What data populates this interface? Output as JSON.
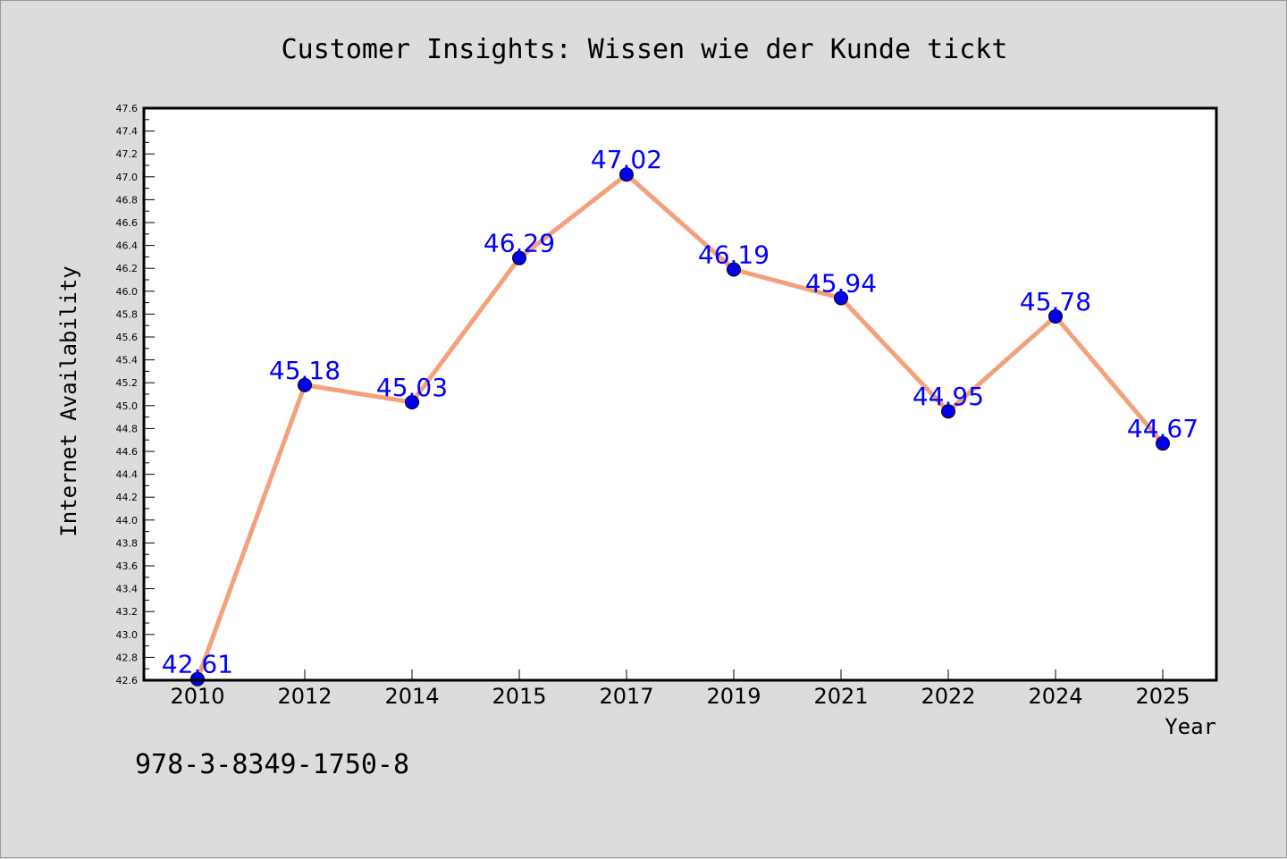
{
  "chart_data": {
    "type": "line",
    "title": "Customer Insights: Wissen wie der Kunde tickt",
    "xlabel": "Year",
    "ylabel": "Internet Availability",
    "categories": [
      "2010",
      "2012",
      "2014",
      "2015",
      "2017",
      "2019",
      "2021",
      "2022",
      "2024",
      "2025"
    ],
    "series": [
      {
        "values": [
          42.61,
          45.18,
          45.03,
          46.29,
          47.02,
          46.19,
          45.94,
          44.95,
          45.78,
          44.67
        ],
        "labels": [
          "42.61",
          "45.18",
          "45.03",
          "46.29",
          "47.02",
          "46.19",
          "45.94",
          "44.95",
          "45.78",
          "44.67"
        ]
      }
    ],
    "ylim": [
      42.6,
      47.6
    ],
    "yticks": [
      "42.6",
      "42.8",
      "43.0",
      "43.2",
      "43.4",
      "43.6",
      "43.8",
      "44.0",
      "44.2",
      "44.4",
      "44.6",
      "44.8",
      "45.0",
      "45.2",
      "45.4",
      "45.6",
      "45.8",
      "46.0",
      "46.2",
      "46.4",
      "46.6",
      "46.8",
      "47.0",
      "47.2",
      "47.4",
      "47.6"
    ],
    "grid": false,
    "colors": {
      "line": "#f4a07a",
      "marker": "#0000ee",
      "label": "#0000ff",
      "background": "#dcdcdc",
      "plot_bg": "#ffffff"
    }
  },
  "footer": {
    "isbn": "978-3-8349-1750-8"
  }
}
